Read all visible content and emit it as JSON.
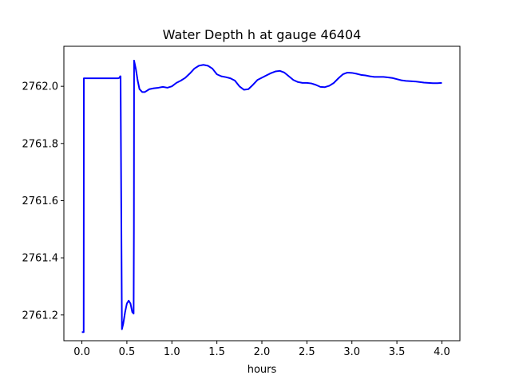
{
  "chart_data": {
    "type": "line",
    "title": "Water Depth h at gauge 46404",
    "xlabel": "hours",
    "ylabel": "",
    "xlim": [
      -0.2,
      4.2
    ],
    "ylim": [
      2761.11,
      2762.14
    ],
    "x_ticks": [
      "0.0",
      "0.5",
      "1.0",
      "1.5",
      "2.0",
      "2.5",
      "3.0",
      "3.5",
      "4.0"
    ],
    "x_tick_values": [
      0.0,
      0.5,
      1.0,
      1.5,
      2.0,
      2.5,
      3.0,
      3.5,
      4.0
    ],
    "y_ticks": [
      "2761.2",
      "2761.4",
      "2761.6",
      "2761.8",
      "2762.0"
    ],
    "y_tick_values": [
      2761.2,
      2761.4,
      2761.6,
      2761.8,
      2762.0
    ],
    "grid": false,
    "series": [
      {
        "color": "#0000ff",
        "points": [
          [
            0.0,
            2761.14
          ],
          [
            0.02,
            2761.14
          ],
          [
            0.022,
            2762.028
          ],
          [
            0.1,
            2762.028
          ],
          [
            0.2,
            2762.028
          ],
          [
            0.3,
            2762.028
          ],
          [
            0.4,
            2762.028
          ],
          [
            0.42,
            2762.03
          ],
          [
            0.425,
            2762.035
          ],
          [
            0.43,
            2762.035
          ],
          [
            0.44,
            2761.43
          ],
          [
            0.445,
            2761.15
          ],
          [
            0.46,
            2761.17
          ],
          [
            0.48,
            2761.21
          ],
          [
            0.5,
            2761.24
          ],
          [
            0.52,
            2761.25
          ],
          [
            0.54,
            2761.24
          ],
          [
            0.56,
            2761.21
          ],
          [
            0.575,
            2761.205
          ],
          [
            0.578,
            2761.5
          ],
          [
            0.58,
            2762.09
          ],
          [
            0.6,
            2762.06
          ],
          [
            0.62,
            2762.02
          ],
          [
            0.64,
            2761.99
          ],
          [
            0.67,
            2761.98
          ],
          [
            0.7,
            2761.98
          ],
          [
            0.75,
            2761.99
          ],
          [
            0.8,
            2761.993
          ],
          [
            0.85,
            2761.995
          ],
          [
            0.9,
            2761.998
          ],
          [
            0.95,
            2761.995
          ],
          [
            1.0,
            2762.0
          ],
          [
            1.05,
            2762.012
          ],
          [
            1.1,
            2762.02
          ],
          [
            1.15,
            2762.03
          ],
          [
            1.2,
            2762.045
          ],
          [
            1.25,
            2762.062
          ],
          [
            1.3,
            2762.072
          ],
          [
            1.35,
            2762.075
          ],
          [
            1.4,
            2762.072
          ],
          [
            1.45,
            2762.062
          ],
          [
            1.5,
            2762.042
          ],
          [
            1.55,
            2762.035
          ],
          [
            1.6,
            2762.032
          ],
          [
            1.65,
            2762.028
          ],
          [
            1.7,
            2762.02
          ],
          [
            1.75,
            2762.0
          ],
          [
            1.8,
            2761.988
          ],
          [
            1.85,
            2761.99
          ],
          [
            1.9,
            2762.005
          ],
          [
            1.95,
            2762.022
          ],
          [
            2.0,
            2762.03
          ],
          [
            2.05,
            2762.038
          ],
          [
            2.1,
            2762.046
          ],
          [
            2.15,
            2762.052
          ],
          [
            2.2,
            2762.054
          ],
          [
            2.25,
            2762.048
          ],
          [
            2.3,
            2762.035
          ],
          [
            2.35,
            2762.022
          ],
          [
            2.4,
            2762.015
          ],
          [
            2.45,
            2762.012
          ],
          [
            2.5,
            2762.012
          ],
          [
            2.55,
            2762.01
          ],
          [
            2.6,
            2762.005
          ],
          [
            2.65,
            2761.998
          ],
          [
            2.7,
            2761.997
          ],
          [
            2.75,
            2762.002
          ],
          [
            2.8,
            2762.012
          ],
          [
            2.85,
            2762.028
          ],
          [
            2.9,
            2762.042
          ],
          [
            2.95,
            2762.048
          ],
          [
            3.0,
            2762.047
          ],
          [
            3.05,
            2762.044
          ],
          [
            3.1,
            2762.04
          ],
          [
            3.15,
            2762.038
          ],
          [
            3.2,
            2762.035
          ],
          [
            3.25,
            2762.033
          ],
          [
            3.3,
            2762.033
          ],
          [
            3.35,
            2762.033
          ],
          [
            3.4,
            2762.031
          ],
          [
            3.45,
            2762.029
          ],
          [
            3.5,
            2762.025
          ],
          [
            3.55,
            2762.021
          ],
          [
            3.6,
            2762.019
          ],
          [
            3.65,
            2762.018
          ],
          [
            3.7,
            2762.017
          ],
          [
            3.75,
            2762.015
          ],
          [
            3.8,
            2762.013
          ],
          [
            3.85,
            2762.012
          ],
          [
            3.9,
            2762.011
          ],
          [
            3.95,
            2762.011
          ],
          [
            4.0,
            2762.012
          ]
        ]
      }
    ]
  }
}
